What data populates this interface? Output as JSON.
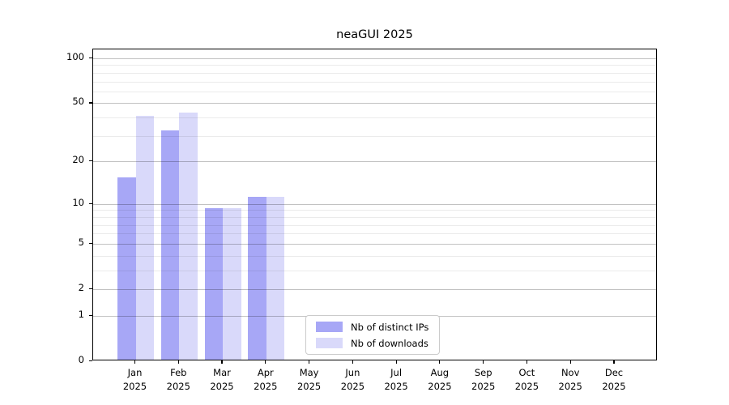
{
  "title": "neaGUI 2025",
  "chart_data": {
    "type": "bar",
    "title": "neaGUI 2025",
    "x_month_labels": [
      "Jan",
      "Feb",
      "Mar",
      "Apr",
      "May",
      "Jun",
      "Jul",
      "Aug",
      "Sep",
      "Oct",
      "Nov",
      "Dec"
    ],
    "x_year_label": "2025",
    "series": [
      {
        "name": "Nb of distinct IPs",
        "color": "#a7a7f6",
        "values": [
          15,
          32,
          9,
          11,
          0,
          0,
          0,
          0,
          0,
          0,
          0,
          0
        ]
      },
      {
        "name": "Nb of downloads",
        "color": "#d9d9fa",
        "values": [
          40,
          42,
          9,
          11,
          0,
          0,
          0,
          0,
          0,
          0,
          0,
          0
        ]
      }
    ],
    "yscale": "log1p",
    "ylim": [
      0,
      113
    ],
    "ytick_labels": [
      "100",
      "50",
      "20",
      "10",
      "5",
      "2",
      "1",
      "0"
    ],
    "ytick_values": [
      100,
      50,
      20,
      10,
      5,
      2,
      1,
      0
    ],
    "minor_gridline_values": [
      3,
      4,
      6,
      7,
      8,
      9,
      30,
      40,
      60,
      70,
      80,
      90
    ],
    "grid": "on",
    "legend_position": "lower center",
    "colors": {
      "bar_dark": "#a7a7f6",
      "bar_light": "#d9d9fa",
      "major_grid": "rgba(0,0,0,0.24)",
      "minor_grid": "rgba(0,0,0,0.08)",
      "axis": "#000000",
      "background": "#ffffff"
    }
  },
  "legend": {
    "items": [
      {
        "label": "Nb of distinct IPs",
        "color": "#a7a7f6"
      },
      {
        "label": "Nb of downloads",
        "color": "#d9d9fa"
      }
    ]
  }
}
